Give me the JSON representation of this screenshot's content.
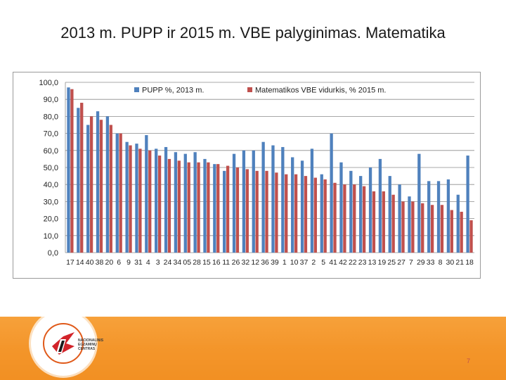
{
  "slide": {
    "title": "2013 m. PUPP ir 2015 m. VBE palyginimas. Matematika",
    "page_number": "7",
    "logo_text": [
      "NACIONALINIS",
      "EGZAMINŲ",
      "CENTRAS"
    ]
  },
  "chart_data": {
    "type": "bar",
    "title": "",
    "xlabel": "",
    "ylabel": "",
    "ylim": [
      0,
      100
    ],
    "yticks": [
      "0,0",
      "10,0",
      "20,0",
      "30,0",
      "40,0",
      "50,0",
      "60,0",
      "70,0",
      "80,0",
      "90,0",
      "100,0"
    ],
    "grid": true,
    "legend_position": "top",
    "categories": [
      "17",
      "14",
      "40",
      "38",
      "20",
      "6",
      "9",
      "31",
      "4",
      "3",
      "24",
      "34",
      "05",
      "28",
      "15",
      "16",
      "11",
      "26",
      "32",
      "12",
      "36",
      "39",
      "1",
      "10",
      "37",
      "2",
      "5",
      "41",
      "42",
      "22",
      "23",
      "13",
      "19",
      "25",
      "27",
      "7",
      "29",
      "33",
      "8",
      "30",
      "21",
      "18"
    ],
    "series": [
      {
        "name": "PUPP %, 2013 m.",
        "color": "#4f81bd",
        "values": [
          97,
          85,
          75,
          83,
          80,
          70,
          65,
          64,
          69,
          61,
          62,
          59,
          58,
          59,
          55,
          52,
          48,
          58,
          60,
          60,
          65,
          63,
          62,
          56,
          54,
          61,
          46,
          70,
          53,
          48,
          45,
          50,
          55,
          45,
          40,
          33,
          58,
          42,
          42,
          43,
          34,
          57
        ]
      },
      {
        "name": "Matematikos VBE vidurkis, % 2015 m.",
        "color": "#c0504d",
        "values": [
          96,
          88,
          80,
          78,
          75,
          70,
          63,
          61,
          60,
          57,
          55,
          54,
          53,
          53,
          53,
          52,
          51,
          50,
          49,
          48,
          48,
          47,
          46,
          46,
          45,
          44,
          43,
          41,
          40,
          40,
          39,
          36,
          36,
          34,
          30,
          30,
          29,
          28,
          28,
          25,
          24,
          19
        ]
      }
    ]
  }
}
